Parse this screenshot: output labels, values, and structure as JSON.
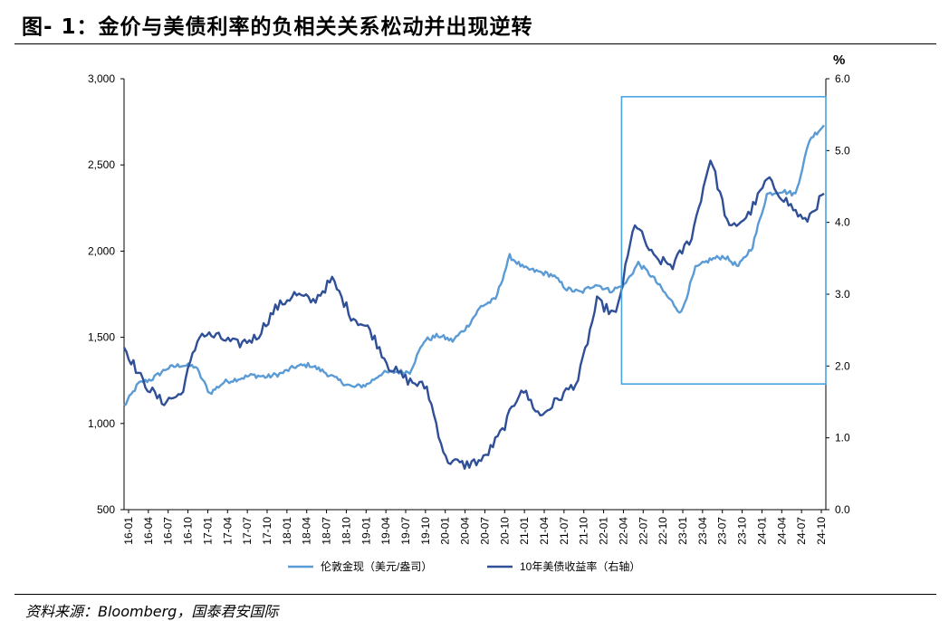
{
  "title": "图- 1：金价与美债利率的负相关关系松动并出现逆转",
  "source": "资料来源：Bloomberg，国泰君安国际",
  "chart_data": {
    "type": "line",
    "title": "",
    "left_axis": {
      "min": 500,
      "max": 3000,
      "ticks": [
        "500",
        "1,000",
        "1,500",
        "2,000",
        "2,500",
        "3,000"
      ]
    },
    "right_axis": {
      "unit": "%",
      "min": 0,
      "max": 6,
      "ticks": [
        "0.0",
        "1.0",
        "2.0",
        "3.0",
        "4.0",
        "5.0",
        "6.0"
      ]
    },
    "x_labels": [
      "16-01",
      "16-04",
      "16-07",
      "16-10",
      "17-01",
      "17-04",
      "17-07",
      "17-10",
      "18-01",
      "18-04",
      "18-07",
      "18-10",
      "19-01",
      "19-04",
      "19-07",
      "19-10",
      "20-01",
      "20-04",
      "20-07",
      "20-10",
      "21-01",
      "21-04",
      "21-07",
      "21-10",
      "22-01",
      "22-04",
      "22-07",
      "22-10",
      "23-01",
      "23-04",
      "23-07",
      "23-10",
      "24-01",
      "24-04",
      "24-07",
      "24-10"
    ],
    "grid": false,
    "legend_position": "bottom",
    "series": [
      {
        "name": "伦敦金现（美元/盎司）",
        "axis": "left",
        "color": "#5b9bd5",
        "values": [
          1100,
          1230,
          1260,
          1320,
          1340,
          1330,
          1175,
          1240,
          1260,
          1280,
          1270,
          1290,
          1330,
          1340,
          1300,
          1250,
          1210,
          1225,
          1290,
          1300,
          1300,
          1480,
          1510,
          1480,
          1560,
          1680,
          1720,
          1970,
          1900,
          1880,
          1860,
          1780,
          1760,
          1810,
          1770,
          1800,
          1930,
          1850,
          1740,
          1640,
          1900,
          1950,
          1970,
          1910,
          2030,
          2330,
          2350,
          2330,
          2650,
          2730
        ]
      },
      {
        "name": "10年美债收益率（右轴）",
        "axis": "right",
        "color": "#2f4f96",
        "values": [
          2.27,
          1.78,
          1.5,
          1.6,
          2.45,
          2.4,
          2.3,
          2.4,
          2.8,
          3.0,
          2.9,
          3.2,
          2.7,
          2.5,
          2.0,
          1.8,
          1.7,
          0.7,
          0.62,
          0.7,
          1.1,
          1.7,
          1.3,
          1.55,
          1.8,
          2.9,
          2.7,
          4.0,
          3.5,
          3.4,
          3.8,
          4.9,
          3.9,
          4.1,
          4.6,
          4.3,
          4.0,
          4.4
        ]
      }
    ],
    "annotation": {
      "shape": "rectangle",
      "x_start": "22-04",
      "x_end": "24-10",
      "y_min": 1.75,
      "y_max": 5.75,
      "axis": "right",
      "color": "#4aa3df"
    }
  }
}
